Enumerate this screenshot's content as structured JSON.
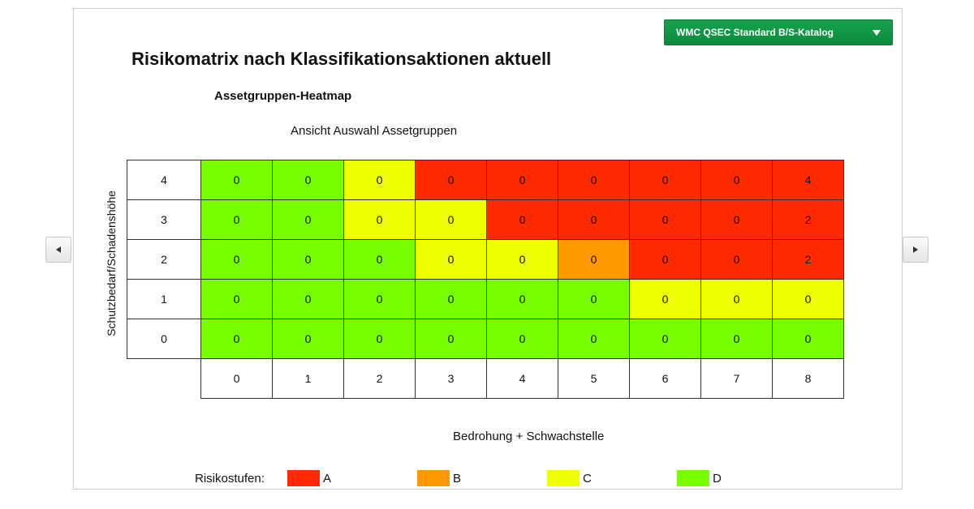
{
  "dropdown": {
    "label": "WMC QSEC Standard B/S-Katalog"
  },
  "title": "Risikomatrix nach Klassifikationsaktionen aktuell",
  "subtitle": "Assetgruppen-Heatmap",
  "view_label": "Ansicht Auswahl Assetgruppen",
  "colors": {
    "A": "#ff2a00",
    "B": "#ff9900",
    "C": "#eeff00",
    "D": "#77ff00"
  },
  "chart_data": {
    "type": "heatmap",
    "title": "Assetgruppen-Heatmap",
    "xlabel": "Bedrohung + Schwachstelle",
    "ylabel": "Schutzbedarf/Schadenshöhe",
    "x": [
      "0",
      "1",
      "2",
      "3",
      "4",
      "5",
      "6",
      "7",
      "8"
    ],
    "y": [
      "4",
      "3",
      "2",
      "1",
      "0"
    ],
    "values": [
      [
        0,
        0,
        0,
        0,
        0,
        0,
        0,
        0,
        4
      ],
      [
        0,
        0,
        0,
        0,
        0,
        0,
        0,
        0,
        2
      ],
      [
        0,
        0,
        0,
        0,
        0,
        0,
        0,
        0,
        2
      ],
      [
        0,
        0,
        0,
        0,
        0,
        0,
        0,
        0,
        0
      ],
      [
        0,
        0,
        0,
        0,
        0,
        0,
        0,
        0,
        0
      ]
    ],
    "risk_levels": [
      [
        "D",
        "D",
        "C",
        "A",
        "A",
        "A",
        "A",
        "A",
        "A"
      ],
      [
        "D",
        "D",
        "C",
        "C",
        "A",
        "A",
        "A",
        "A",
        "A"
      ],
      [
        "D",
        "D",
        "D",
        "C",
        "C",
        "B",
        "A",
        "A",
        "A"
      ],
      [
        "D",
        "D",
        "D",
        "D",
        "D",
        "D",
        "C",
        "C",
        "C"
      ],
      [
        "D",
        "D",
        "D",
        "D",
        "D",
        "D",
        "D",
        "D",
        "D"
      ]
    ]
  },
  "legend": {
    "label": "Risikostufen:",
    "items": [
      {
        "level": "A",
        "label": "A"
      },
      {
        "level": "B",
        "label": "B"
      },
      {
        "level": "C",
        "label": "C"
      },
      {
        "level": "D",
        "label": "D"
      }
    ]
  }
}
